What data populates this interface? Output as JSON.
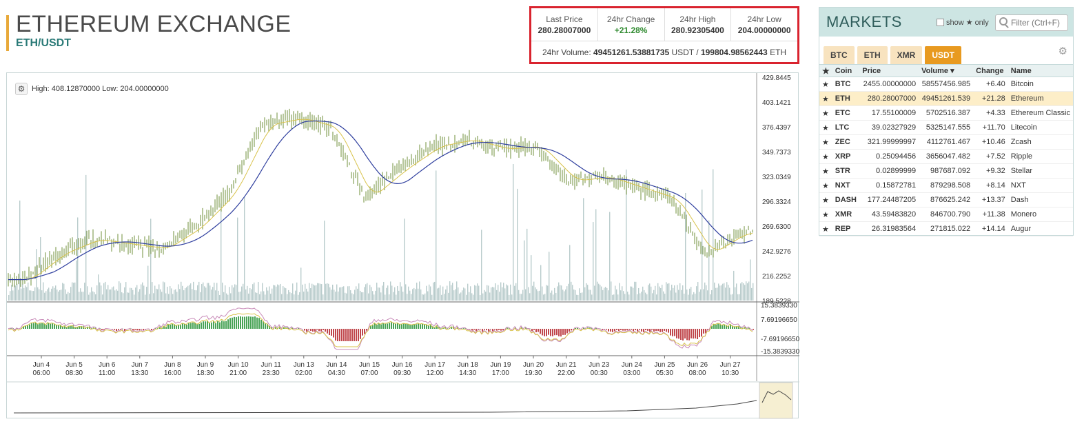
{
  "header": {
    "title": "ETHEREUM EXCHANGE",
    "pair": "ETH/USDT"
  },
  "stats": {
    "last_price_label": "Last Price",
    "last_price": "280.28007000",
    "change_label": "24hr Change",
    "change": "+21.28%",
    "high_label": "24hr High",
    "high": "280.92305400",
    "low_label": "24hr Low",
    "low": "204.00000000",
    "volume_label": "24hr Volume:",
    "volume_usdt": "49451261.53881735",
    "volume_usdt_unit": "USDT /",
    "volume_eth": "199804.98562443",
    "volume_eth_unit": "ETH"
  },
  "chart": {
    "high_low_text": "High: 408.12870000  Low: 204.00000000",
    "price_axis": [
      "429.8445",
      "403.1421",
      "376.4397",
      "349.7373",
      "323.0349",
      "296.3324",
      "269.6300",
      "242.9276",
      "216.2252",
      "189.5228"
    ],
    "osc_axis": [
      "15.3839330",
      "7.69196650",
      "-7.69196650",
      "-15.3839330"
    ],
    "time_labels": [
      [
        "Jun 4",
        "06:00"
      ],
      [
        "Jun 5",
        "08:30"
      ],
      [
        "Jun 6",
        "11:00"
      ],
      [
        "Jun 7",
        "13:30"
      ],
      [
        "Jun 8",
        "16:00"
      ],
      [
        "Jun 9",
        "18:30"
      ],
      [
        "Jun 10",
        "21:00"
      ],
      [
        "Jun 11",
        "23:30"
      ],
      [
        "Jun 13",
        "02:00"
      ],
      [
        "Jun 14",
        "04:30"
      ],
      [
        "Jun 15",
        "07:00"
      ],
      [
        "Jun 16",
        "09:30"
      ],
      [
        "Jun 17",
        "12:00"
      ],
      [
        "Jun 18",
        "14:30"
      ],
      [
        "Jun 19",
        "17:00"
      ],
      [
        "Jun 20",
        "19:30"
      ],
      [
        "Jun 21",
        "22:00"
      ],
      [
        "Jun 23",
        "00:30"
      ],
      [
        "Jun 24",
        "03:00"
      ],
      [
        "Jun 25",
        "05:30"
      ],
      [
        "Jun 26",
        "08:00"
      ],
      [
        "Jun 27",
        "10:30"
      ]
    ],
    "colors": {
      "candle": "#6f8f3a",
      "ma_slow": "#2e3e9e",
      "ma_fast": "#d8c24a",
      "volume": "#b9cccc",
      "osc_up": "#49a356",
      "osc_down": "#c0474c"
    }
  },
  "chart_data": {
    "type": "line",
    "title": "",
    "ylim": [
      189.5228,
      429.8445
    ],
    "x": [
      "Jun 4",
      "Jun 5",
      "Jun 6",
      "Jun 7",
      "Jun 8",
      "Jun 9",
      "Jun 10",
      "Jun 11",
      "Jun 13",
      "Jun 14",
      "Jun 15",
      "Jun 16",
      "Jun 17",
      "Jun 18",
      "Jun 19",
      "Jun 20",
      "Jun 21",
      "Jun 23",
      "Jun 24",
      "Jun 25",
      "Jun 26",
      "Jun 27"
    ],
    "series": [
      {
        "values": [
          212,
          240,
          255,
          250,
          245,
          268,
          305,
          378,
          385,
          375,
          300,
          330,
          355,
          362,
          352,
          355,
          318,
          322,
          310,
          298,
          240,
          262
        ]
      }
    ]
  },
  "markets": {
    "title": "MARKETS",
    "show_label": "show",
    "only_label": "only",
    "filter_placeholder": "Filter (Ctrl+F)",
    "tabs": [
      "BTC",
      "ETH",
      "XMR",
      "USDT"
    ],
    "columns": [
      "Coin",
      "Price",
      "Volume ▾",
      "Change",
      "Name"
    ],
    "rows": [
      [
        "BTC",
        "2455.00000000",
        "58557456.985",
        "+6.40",
        "Bitcoin"
      ],
      [
        "ETH",
        "280.28007000",
        "49451261.539",
        "+21.28",
        "Ethereum"
      ],
      [
        "ETC",
        "17.55100009",
        "5702516.387",
        "+4.33",
        "Ethereum Classic"
      ],
      [
        "LTC",
        "39.02327929",
        "5325147.555",
        "+11.70",
        "Litecoin"
      ],
      [
        "ZEC",
        "321.99999997",
        "4112761.467",
        "+10.46",
        "Zcash"
      ],
      [
        "XRP",
        "0.25094456",
        "3656047.482",
        "+7.52",
        "Ripple"
      ],
      [
        "STR",
        "0.02899999",
        "987687.092",
        "+9.32",
        "Stellar"
      ],
      [
        "NXT",
        "0.15872781",
        "879298.508",
        "+8.14",
        "NXT"
      ],
      [
        "DASH",
        "177.24487205",
        "876625.242",
        "+13.37",
        "Dash"
      ],
      [
        "XMR",
        "43.59483820",
        "846700.790",
        "+11.38",
        "Monero"
      ],
      [
        "REP",
        "26.31983564",
        "271815.022",
        "+14.14",
        "Augur"
      ]
    ]
  }
}
